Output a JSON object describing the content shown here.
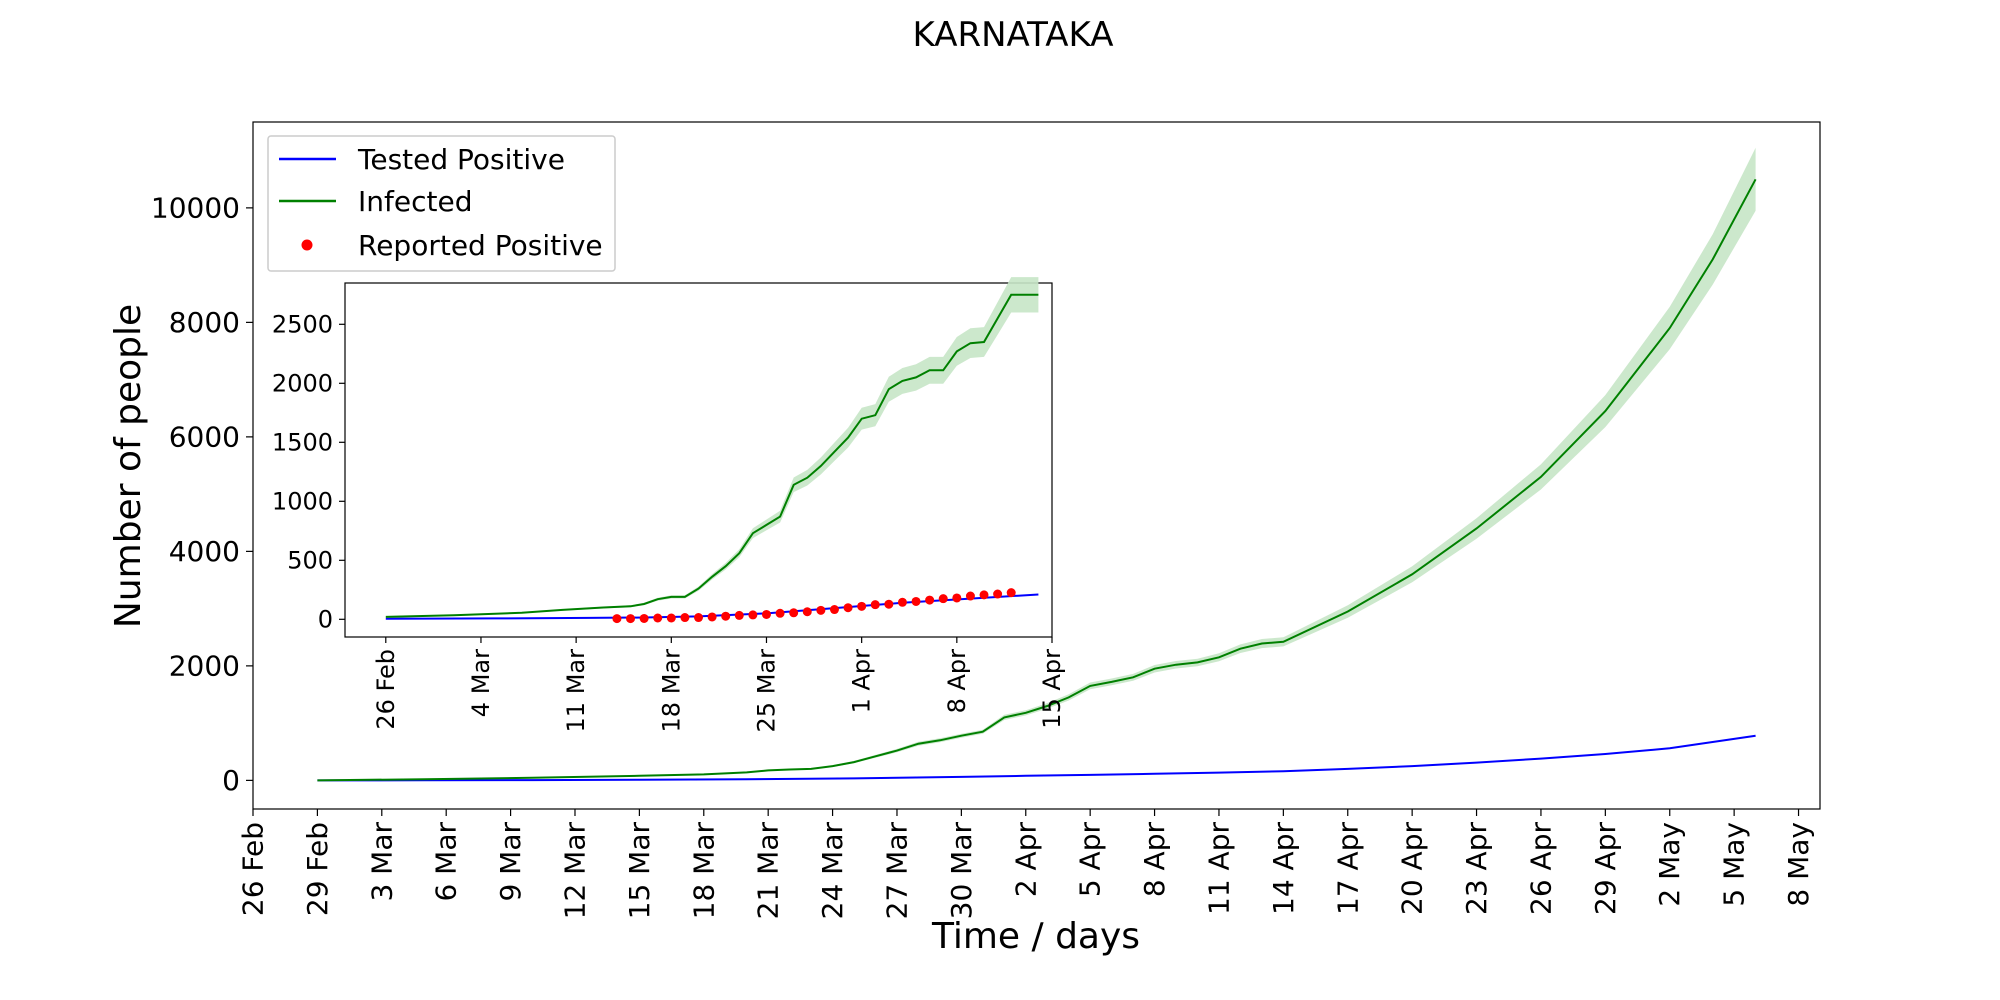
{
  "chart_data": [
    {
      "type": "line",
      "title": "KARNATAKA",
      "xlabel": "Time / days",
      "ylabel": "Number of people",
      "xlim": [
        "2020-02-26",
        "2020-05-09"
      ],
      "ylim": [
        -500,
        11500
      ],
      "x_ticks": [
        "2020-02-26",
        "2020-02-29",
        "2020-03-03",
        "2020-03-06",
        "2020-03-09",
        "2020-03-12",
        "2020-03-15",
        "2020-03-18",
        "2020-03-21",
        "2020-03-24",
        "2020-03-27",
        "2020-03-30",
        "2020-04-02",
        "2020-04-05",
        "2020-04-08",
        "2020-04-11",
        "2020-04-14",
        "2020-04-17",
        "2020-04-20",
        "2020-04-23",
        "2020-04-26",
        "2020-04-29",
        "2020-05-02",
        "2020-05-05",
        "2020-05-08"
      ],
      "x_tick_labels": [
        "26 Feb",
        "29 Feb",
        "3 Mar",
        "6 Mar",
        "9 Mar",
        "12 Mar",
        "15 Mar",
        "18 Mar",
        "21 Mar",
        "24 Mar",
        "27 Mar",
        "30 Mar",
        "2 Apr",
        "5 Apr",
        "8 Apr",
        "11 Apr",
        "14 Apr",
        "17 Apr",
        "20 Apr",
        "23 Apr",
        "26 Apr",
        "29 Apr",
        "2 May",
        "5 May",
        "8 May"
      ],
      "y_ticks": [
        0,
        2000,
        4000,
        6000,
        8000,
        10000
      ],
      "y_tick_labels": [
        "0",
        "2000",
        "4000",
        "6000",
        "8000",
        "10000"
      ],
      "grid": false,
      "legend_position": "upper-left",
      "legend": [
        {
          "label": "Tested Positive",
          "marker": "line",
          "color": "#0000ff"
        },
        {
          "label": "Infected",
          "marker": "line",
          "color": "#008000"
        },
        {
          "label": "Reported Positive",
          "marker": "dot",
          "color": "#ff0000"
        }
      ],
      "series": [
        {
          "name": "Tested Positive",
          "color": "#0000ff",
          "x": [
            "2020-02-29",
            "2020-03-05",
            "2020-03-10",
            "2020-03-15",
            "2020-03-20",
            "2020-03-25",
            "2020-03-30",
            "2020-04-02",
            "2020-04-05",
            "2020-04-08",
            "2020-04-11",
            "2020-04-14",
            "2020-04-17",
            "2020-04-20",
            "2020-04-23",
            "2020-04-26",
            "2020-04-29",
            "2020-05-02",
            "2020-05-06"
          ],
          "y": [
            0,
            2,
            5,
            10,
            18,
            35,
            60,
            80,
            95,
            115,
            135,
            160,
            200,
            250,
            310,
            380,
            460,
            560,
            780
          ]
        },
        {
          "name": "Infected",
          "color": "#008000",
          "band_color": "#c7e6c7",
          "x": [
            "2020-02-29",
            "2020-03-05",
            "2020-03-10",
            "2020-03-15",
            "2020-03-18",
            "2020-03-20",
            "2020-03-21",
            "2020-03-22",
            "2020-03-23",
            "2020-03-24",
            "2020-03-25",
            "2020-03-26",
            "2020-03-27",
            "2020-03-28",
            "2020-03-29",
            "2020-03-30",
            "2020-03-31",
            "2020-04-01",
            "2020-04-02",
            "2020-04-03",
            "2020-04-04",
            "2020-04-05",
            "2020-04-06",
            "2020-04-07",
            "2020-04-08",
            "2020-04-09",
            "2020-04-10",
            "2020-04-11",
            "2020-04-12",
            "2020-04-13",
            "2020-04-14",
            "2020-04-17",
            "2020-04-20",
            "2020-04-23",
            "2020-04-26",
            "2020-04-29",
            "2020-05-02",
            "2020-05-04",
            "2020-05-06"
          ],
          "y": [
            0,
            20,
            45,
            80,
            105,
            140,
            175,
            190,
            200,
            250,
            320,
            420,
            520,
            640,
            700,
            780,
            850,
            1100,
            1180,
            1300,
            1450,
            1650,
            1720,
            1800,
            1950,
            2020,
            2060,
            2150,
            2300,
            2390,
            2420,
            2950,
            3600,
            4400,
            5300,
            6450,
            7900,
            9100,
            10500
          ],
          "lower": [
            0,
            18,
            42,
            75,
            98,
            130,
            165,
            180,
            190,
            235,
            300,
            395,
            490,
            605,
            665,
            745,
            815,
            1055,
            1135,
            1250,
            1395,
            1590,
            1660,
            1740,
            1885,
            1955,
            1995,
            2080,
            2225,
            2310,
            2340,
            2840,
            3460,
            4220,
            5080,
            6170,
            7530,
            8660,
            9950
          ],
          "upper": [
            0,
            22,
            48,
            85,
            112,
            150,
            185,
            200,
            210,
            265,
            340,
            445,
            550,
            675,
            735,
            815,
            885,
            1145,
            1225,
            1350,
            1505,
            1710,
            1780,
            1860,
            2015,
            2085,
            2125,
            2220,
            2375,
            2470,
            2500,
            3060,
            3740,
            4580,
            5520,
            6730,
            8270,
            9540,
            11050
          ]
        }
      ]
    },
    {
      "type": "line",
      "role": "inset",
      "xlim": [
        "2020-02-23",
        "2020-04-15"
      ],
      "ylim": [
        -150,
        2850
      ],
      "x_ticks": [
        "2020-02-26",
        "2020-03-04",
        "2020-03-11",
        "2020-03-18",
        "2020-03-25",
        "2020-04-01",
        "2020-04-08",
        "2020-04-15"
      ],
      "x_tick_labels": [
        "26 Feb",
        "4 Mar",
        "11 Mar",
        "18 Mar",
        "25 Mar",
        "1 Apr",
        "8 Apr",
        "15 Apr"
      ],
      "y_ticks": [
        0,
        500,
        1000,
        1500,
        2000,
        2500
      ],
      "y_tick_labels": [
        "0",
        "500",
        "1000",
        "1500",
        "2000",
        "2500"
      ],
      "grid": false,
      "series": [
        {
          "name": "Tested Positive",
          "color": "#0000ff",
          "x": [
            "2020-02-26",
            "2020-03-05",
            "2020-03-12",
            "2020-03-16",
            "2020-03-20",
            "2020-03-25",
            "2020-03-30",
            "2020-04-04",
            "2020-04-09",
            "2020-04-14"
          ],
          "y": [
            5,
            8,
            12,
            15,
            25,
            50,
            95,
            140,
            175,
            210
          ]
        },
        {
          "name": "Infected",
          "color": "#008000",
          "band_color": "#c7e6c7",
          "x": [
            "2020-02-26",
            "2020-03-02",
            "2020-03-07",
            "2020-03-10",
            "2020-03-13",
            "2020-03-15",
            "2020-03-16",
            "2020-03-17",
            "2020-03-18",
            "2020-03-19",
            "2020-03-20",
            "2020-03-21",
            "2020-03-22",
            "2020-03-23",
            "2020-03-24",
            "2020-03-25",
            "2020-03-26",
            "2020-03-27",
            "2020-03-28",
            "2020-03-29",
            "2020-03-30",
            "2020-03-31",
            "2020-04-01",
            "2020-04-02",
            "2020-04-03",
            "2020-04-04",
            "2020-04-05",
            "2020-04-06",
            "2020-04-07",
            "2020-04-08",
            "2020-04-09",
            "2020-04-10",
            "2020-04-11",
            "2020-04-12",
            "2020-04-13",
            "2020-04-14"
          ],
          "y": [
            20,
            35,
            55,
            80,
            100,
            110,
            130,
            170,
            190,
            190,
            260,
            360,
            450,
            560,
            730,
            800,
            870,
            1140,
            1200,
            1300,
            1420,
            1540,
            1700,
            1730,
            1950,
            2020,
            2050,
            2110,
            2110,
            2270,
            2340,
            2350,
            2550,
            2750,
            2750,
            2750
          ],
          "lower": [
            18,
            32,
            50,
            74,
            92,
            101,
            120,
            158,
            176,
            176,
            242,
            337,
            422,
            526,
            688,
            754,
            820,
            1078,
            1134,
            1228,
            1342,
            1456,
            1608,
            1636,
            1844,
            1910,
            1938,
            1996,
            1996,
            2148,
            2214,
            2224,
            2412,
            2600,
            2600,
            2600
          ],
          "upper": [
            22,
            38,
            60,
            86,
            108,
            119,
            140,
            182,
            204,
            204,
            278,
            383,
            478,
            594,
            772,
            846,
            920,
            1202,
            1266,
            1372,
            1498,
            1624,
            1792,
            1824,
            2056,
            2130,
            2162,
            2224,
            2224,
            2392,
            2466,
            2476,
            2688,
            2900,
            2900,
            2900
          ]
        },
        {
          "name": "Reported Positive",
          "color": "#ff0000",
          "marker": "dot",
          "x": [
            "2020-03-14",
            "2020-03-15",
            "2020-03-16",
            "2020-03-17",
            "2020-03-18",
            "2020-03-19",
            "2020-03-20",
            "2020-03-21",
            "2020-03-22",
            "2020-03-23",
            "2020-03-24",
            "2020-03-25",
            "2020-03-26",
            "2020-03-27",
            "2020-03-28",
            "2020-03-29",
            "2020-03-30",
            "2020-03-31",
            "2020-04-01",
            "2020-04-02",
            "2020-04-03",
            "2020-04-04",
            "2020-04-05",
            "2020-04-06",
            "2020-04-07",
            "2020-04-08",
            "2020-04-09",
            "2020-04-10",
            "2020-04-11",
            "2020-04-12"
          ],
          "y": [
            6,
            6,
            7,
            11,
            11,
            15,
            15,
            20,
            26,
            33,
            37,
            41,
            51,
            55,
            64,
            76,
            83,
            98,
            110,
            124,
            128,
            144,
            151,
            163,
            175,
            181,
            197,
            207,
            214,
            226
          ]
        }
      ]
    }
  ]
}
